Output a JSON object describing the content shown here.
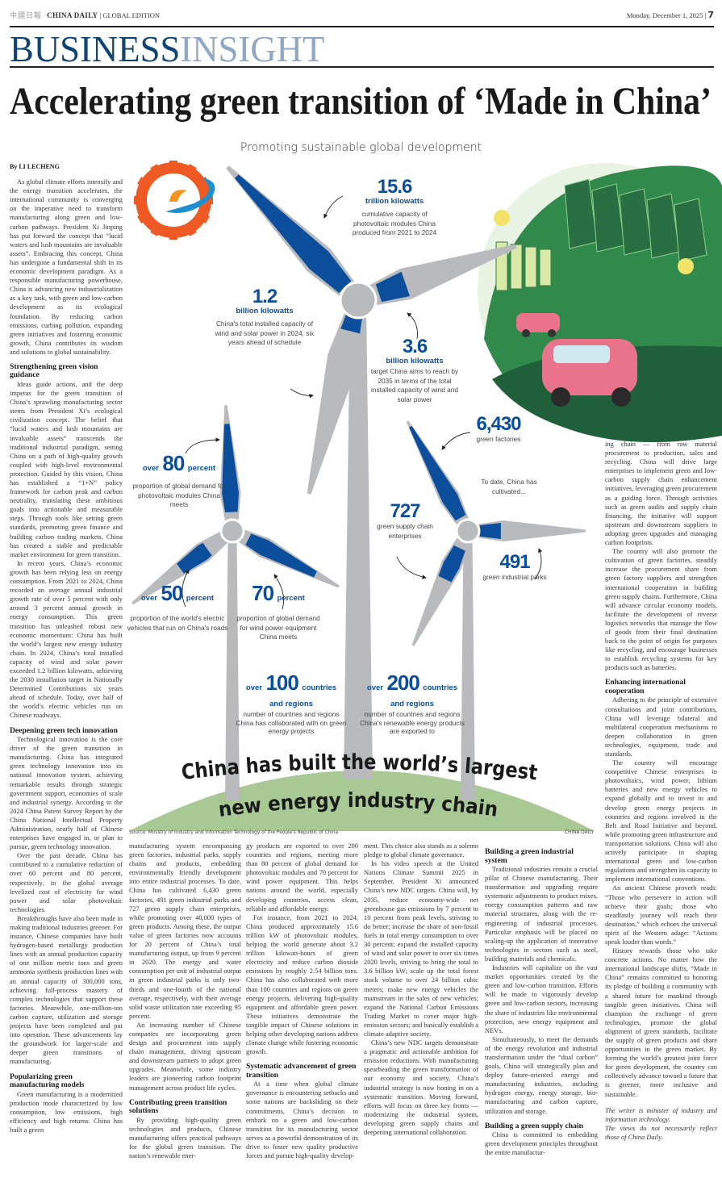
{
  "masthead": {
    "chinese_name": "中國日報",
    "paper": "CHINA DAILY",
    "edition": "GLOBAL EDITION",
    "date": "Monday, December 1, 2025",
    "page_number": "7"
  },
  "section": {
    "part1": "BUSINESS",
    "part2": "INSIGHT"
  },
  "headline": "Accelerating green transition of ‘Made in China’",
  "infographic": {
    "title": "Promoting sustainable global development",
    "stats": {
      "pv": {
        "number": "15.6",
        "unit": "trillion kilowatts",
        "desc": "cumulative capacity of photovoltaic modules China produced from 2021 to 2024"
      },
      "installed": {
        "number": "1.2",
        "unit": "billion kilowatts",
        "desc": "China's total installed capacity of wind and solar power in 2024, six years ahead of schedule"
      },
      "target": {
        "number": "3.6",
        "unit": "billion kilowatts",
        "desc": "target China aims to reach by 2035 in terms of the total installed capacity of wind and solar power"
      },
      "pv_demand": {
        "prefix": "over",
        "number": "80",
        "unit": "percent",
        "desc": "proportion of global demand for photovoltaic modules China meets"
      },
      "ev": {
        "prefix": "over",
        "number": "50",
        "unit": "percent",
        "desc": "proportion of the world's electric vehicles that run on China's roads"
      },
      "wind_demand": {
        "number": "70",
        "unit": "percent",
        "desc": "proportion of global demand for wind power equipment China meets"
      },
      "factories": {
        "number": "6,430",
        "unit": "green factories"
      },
      "intro": "To date, China has cultivated...",
      "supply": {
        "number": "727",
        "unit": "green supply chain enterprises"
      },
      "parks": {
        "number": "491",
        "unit": "green industrial parks"
      },
      "collab": {
        "prefix": "over",
        "number": "100",
        "unit": "countries",
        "unit2": "and regions",
        "desc": "number of countries and regions China has collaborated with on green energy projects"
      },
      "export": {
        "prefix": "over",
        "number": "200",
        "unit": "countries",
        "unit2": "and regions",
        "desc": "number of countries and regions China's renewable energy products are exported to"
      }
    },
    "banner_line1": "China has built the world’s largest",
    "banner_line2": "new energy industry chain",
    "source": "Source: Ministry of Industry and Information Technology of the People's Republic of China",
    "credit": "CHINA DAILY",
    "colors": {
      "blue": "#0b4f9c",
      "gray": "#b9babe",
      "hill": "#a9c994",
      "logo_orange": "#ef5a24",
      "logo_blue": "#1c8fd0"
    }
  },
  "columns": {
    "c1": [
      {
        "type": "byline",
        "text": "By LI LECHENG"
      },
      {
        "type": "p",
        "text": "As global climate efforts intensify and the energy transition accelerates, the international community is converging on the imperative need to transform manufacturing along green and low-carbon pathways. President Xi Jinping has put forward the concept that “lucid waters and lush mountains are invaluable assets”. Embracing this concept, China has undergone a fundamental shift in its economic development paradigm. As a responsible manufacturing powerhouse, China is advancing new industrialization as a key task, with green and low-carbon development as its ecological foundation. By reducing carbon emissions, curbing pollution, expanding green initiatives and fostering economic growth, China contributes its wisdom and solutions to global sustainability."
      },
      {
        "type": "h",
        "text": "Strengthening green vision guidance"
      },
      {
        "type": "p",
        "text": "Ideas guide actions, and the deep impetus for the green transition of China’s sprawling manufacturing sector stems from President Xi’s ecological civilization concept. The belief that “lucid waters and lush mountains are invaluable assets” transcends the traditional industrial paradigm, setting China on a path of high-quality growth coupled with high-level environmental protection. Guided by this vision, China has established a “1+N” policy framework for carbon peak and carbon neutrality, translating these ambitious goals into actionable and measurable steps. Through tools like setting green standards, promoting green finance and building carbon trading markets, China has created a stable and predictable market environment for green transition."
      },
      {
        "type": "p",
        "text": "In recent years, China’s economic growth has been relying less on energy consumption. From 2021 to 2024, China recorded an average annual industrial growth rate of over 5 percent with only around 3 percent annual growth in energy consumption. This green transition has unleashed robust new economic momentum: China has built the world’s largest new energy industry chain. In 2024, China’s total installed capacity of wind and solar power exceeded 1.2 billion kilowatts, achieving the 2030 installation target in Nationally Determined Contributions six years ahead of schedule. Today, over half of the world’s electric vehicles run on Chinese roadways."
      },
      {
        "type": "h",
        "text": "Deepening green tech innovation"
      },
      {
        "type": "p",
        "text": "Technological innovation is the core driver of the green transition in manufacturing. China has integrated green technology innovation into its national innovation system, achieving remarkable results through strategic government support, economies of scale and industrial synergy. According to the 2024 China Patent Survey Report by the China National Intellectual Property Administration, nearly half of Chinese enterprises have engaged in, or plan to pursue, green technology innovation."
      },
      {
        "type": "p",
        "text": "Over the past decade, China has contributed to a cumulative reduction of over 60 percent and 80 percent, respectively, in the global average levelized cost of electricity for wind power and solar photovoltaic technologies."
      },
      {
        "type": "p",
        "text": "Breakthroughs have also been made in making traditional industries greener. For instance, Chinese companies have built hydrogen-based metallurgy production lines with an annual production capacity of one million metric tons and green ammonia synthesis production lines with an annual capacity of 300,000 tons, achieving full-process mastery of complex technologies that support these factories. Meanwhile, one-million-ton carbon capture, utilization and storage projects have been completed and put into operation. These advancements lay the groundwork for larger-scale and deeper green transitions of manufacturing."
      },
      {
        "type": "h",
        "text": "Popularizing green manufacturing models"
      },
      {
        "type": "p",
        "text": "Green manufacturing is a modernized production mode characterized by low consumption, low emissions, high efficiency and high returns. China has built a green"
      }
    ],
    "c2": [
      {
        "type": "cont",
        "text": "manufacturing system encompassing green factories, industrial parks, supply chains and products, embedding environmentally friendly development into entire industrial processes. To date, China has cultivated 6,430 green factories, 491 green industrial parks and 727 green supply chain enterprises, while promoting over 40,000 types of green products. Among these, the output value of green factories now accounts for 20 percent of China’s total manufacturing output, up from 9 percent in 2020. The energy and water consumption per unit of industrial output in green industrial parks is only two-thirds and one-fourth of the national average, respectively, with their average solid waste utilization rate exceeding 95 percent."
      },
      {
        "type": "p",
        "text": "An increasing number of Chinese companies are incorporating green design and procurement into supply chain management, driving upstream and downstream partners to adopt green upgrades. Meanwhile, some industry leaders are pioneering carbon footprint management across product life cycles."
      },
      {
        "type": "h",
        "text": "Contributing green transition solutions"
      },
      {
        "type": "p",
        "text": "By providing high-quality green technologies and products, Chinese manufacturing offers practical pathways for the global green transition. The nation’s renewable ener-"
      }
    ],
    "c3": [
      {
        "type": "cont",
        "text": "gy products are exported to over 200 countries and regions, meeting more than 80 percent of global demand for photovoltaic modules and 70 percent for wind power equipment. This helps nations around the world, especially developing countries, access clean, reliable and affordable energy."
      },
      {
        "type": "p",
        "text": "For instance, from 2021 to 2024, China produced approximately 15.6 trillion kW of photovoltaic modules, helping the world generate about 3.2 trillion kilowatt-hours of green electricity and reduce carbon dioxide emissions by roughly 2.54 billion tons. China has also collaborated with more than 100 countries and regions on green energy projects, delivering high-quality equipment and affordable green power. These initiatives demonstrate the tangible impact of Chinese solutions in helping other developing nations address climate change while fostering economic growth."
      },
      {
        "type": "h",
        "text": "Systematic advancement of green transition"
      },
      {
        "type": "p",
        "text": "At a time when global climate governance is encountering setbacks and some nations are backsliding on their commitments, China’s decision to embark on a green and low-carbon transition for its manufacturing sector serves as a powerful demonstration of its drive to foster new quality productive forces and pursue high-quality develop-"
      }
    ],
    "c4": [
      {
        "type": "cont",
        "text": "ment. This choice also stands as a solemn pledge to global climate governance."
      },
      {
        "type": "p",
        "text": "In his video speech at the United Nations Climate Summit 2025 in September, President Xi announced China’s new NDC targets. China will, by 2035, reduce economy-wide net greenhouse gas emissions by 7 percent to 10 percent from peak levels, striving to do better; increase the share of non-fossil fuels in total energy consumption to over 30 percent; expand the installed capacity of wind and solar power to over six times 2020 levels, striving to bring the total to 3.6 billion kW; scale up the total forest stock volume to over 24 billion cubic meters; make new energy vehicles the mainstream in the sales of new vehicles; expand the National Carbon Emissions Trading Market to cover major high-emission sectors; and basically establish a climate adaptive society."
      },
      {
        "type": "p",
        "text": "China’s new NDC targets demonstrate a pragmatic and actionable ambition for emission reductions. With manufacturing spearheading the green transformation of our economy and society, China’s industrial strategy is now honing in on a systematic transition. Moving forward, efforts will focus on three key fronts — modernizing the industrial system, developing green supply chains and deepening international collaboration."
      }
    ],
    "c5": [
      {
        "type": "h",
        "text": "Building a green industrial system"
      },
      {
        "type": "p",
        "text": "Traditional industries remain a crucial pillar of Chinese manufacturing. Their transformation and upgrading require systematic adjustments to product mixes, energy consumption patterns and raw material structures, along with the re-engineering of industrial processes. Particular emphasis will be placed on scaling-up the application of innovative technologies in sectors such as steel, building materials and chemicals."
      },
      {
        "type": "p",
        "text": "Industries will capitalize on the vast market opportunities created by the green and low-carbon transition. Efforts will be made to vigorously develop green and low-carbon sectors, increasing the share of industries like environmental protection, new energy equipment and NEVs."
      },
      {
        "type": "p",
        "text": "Simultaneously, to meet the demands of the energy revolution and industrial transformation under the “dual carbon” goals, China will strategically plan and deploy future-oriented energy and manufacturing industries, including hydrogen energy, energy storage, bio-manufacturing and carbon capture, utilization and storage."
      },
      {
        "type": "h",
        "text": "Building a green supply chain"
      },
      {
        "type": "p",
        "text": "China is committed to embedding green development principles throughout the entire manufactur-"
      }
    ],
    "c6": [
      {
        "type": "cont",
        "text": "ing chain — from raw material procurement to production, sales and recycling. China will drive large enterprises to implement green and low-carbon supply chain enhancement initiatives, leveraging green procurement as a guiding force. Through activities such as green audits and supply chain financing, the initiative will support upstream and downstream suppliers in adopting green upgrades and managing carbon footprints."
      },
      {
        "type": "p",
        "text": "The country will also promote the cultivation of green factories, steadily increase the procurement share from green factory suppliers and strengthen international cooperation in building green supply chains. Furthermore, China will advance circular economy models, facilitate the development of reverse logistics networks that manage the flow of goods from their final destination back to the point of origin for purposes like recycling, and encourage businesses to establish recycling systems for key products such as batteries."
      },
      {
        "type": "h",
        "text": "Enhancing international cooperation"
      },
      {
        "type": "p",
        "text": "Adhering to the principle of extensive consultations and joint contributions, China will leverage bilateral and multilateral cooperation mechanisms to deepen collaboration in green technologies, equipment, trade and standards."
      },
      {
        "type": "p",
        "text": "The country will encourage competitive Chinese enterprises in photovoltaics, wind power, lithium batteries and new energy vehicles to expand globally and to invest in and develop green energy projects in countries and regions involved in the Belt and Road Initiative and beyond, while promoting green infrastructure and transportation solutions. China will also actively participate in shaping international green and low-carbon regulations and strengthen its capacity to implement international conventions."
      },
      {
        "type": "p",
        "text": "An ancient Chinese proverb reads: “Those who persevere in action will achieve their goals; those who steadfastly journey will reach their destination,” which echoes the universal spirit of the Western adage: “Actions speak louder than words.”"
      },
      {
        "type": "p",
        "text": "History rewards those who take concrete actions. No matter how the international landscape shifts, “Made in China” remains committed to honoring its pledge of building a community with a shared future for mankind through tangible green initiatives. China will champion the exchange of green technologies, promote the global alignment of green standards, facilitate the supply of green products and share opportunities in the green market. By forming the world’s greatest joint force for green development, the country can collectively advance toward a future that is greener, more inclusive and sustainable."
      },
      {
        "type": "note",
        "text": "The writer is minister of industry and information technology."
      },
      {
        "type": "note2",
        "text": "The views do not necessarily reflect those of China Daily."
      }
    ]
  }
}
